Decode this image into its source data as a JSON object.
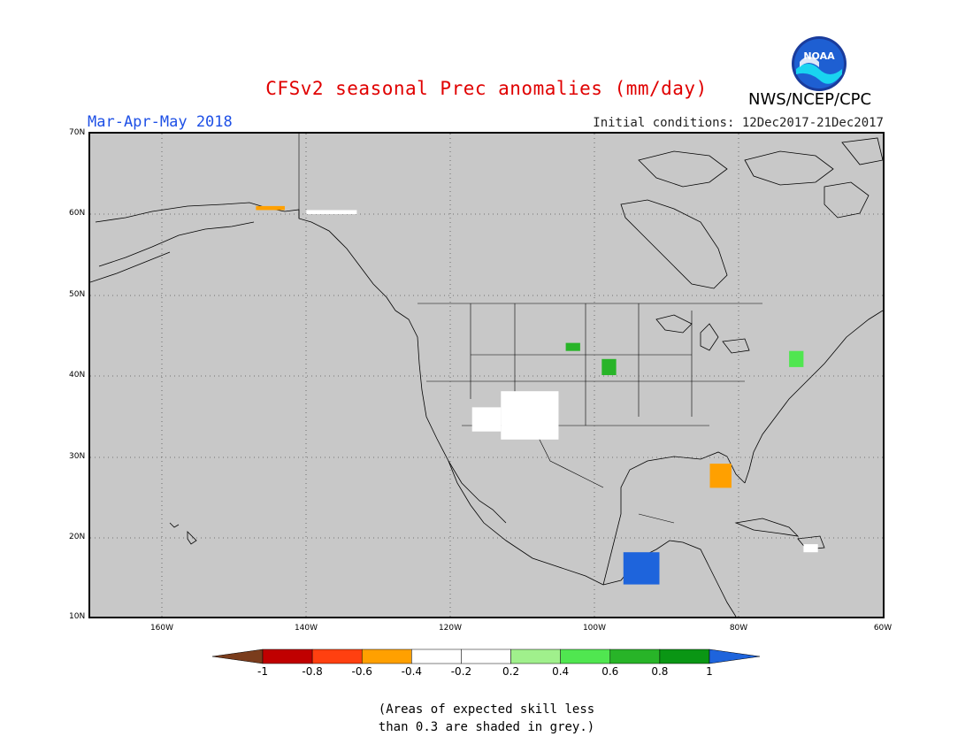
{
  "title": "CFSv2 seasonal Prec anomalies (mm/day)",
  "season": "Mar-Apr-May 2018",
  "initial_conditions": "Initial conditions: 12Dec2017-21Dec2017",
  "agency": "NWS/NCEP/CPC",
  "logo_text": "NOAA",
  "lat_labels": [
    "70N",
    "60N",
    "50N",
    "40N",
    "30N",
    "20N",
    "10N"
  ],
  "lon_labels": [
    "160W",
    "140W",
    "120W",
    "100W",
    "80W",
    "60W"
  ],
  "colorbar": {
    "ticks": [
      "-1",
      "-0.8",
      "-0.6",
      "-0.4",
      "-0.2",
      "0.2",
      "0.4",
      "0.6",
      "0.8",
      "1"
    ],
    "colors": [
      "#7a3c1c",
      "#c00000",
      "#ff4010",
      "#ffa000",
      "#ffffff",
      "#a0f08c",
      "#50e650",
      "#28b428",
      "#0a9614",
      "#1e64dc"
    ]
  },
  "footnote_line1": "(Areas of expected skill less",
  "footnote_line2": "than 0.3 are shaded in grey.)",
  "colors": {
    "background_grey": "#c8c8c8",
    "title_red": "#e00000",
    "season_blue": "#1e50e6"
  },
  "chart_data": {
    "type": "heatmap",
    "title": "CFSv2 seasonal Prec anomalies (mm/day)",
    "period": "Mar-Apr-May 2018",
    "xlim": [
      -170,
      -60
    ],
    "ylim": [
      10,
      70
    ],
    "grid": true,
    "units": "mm/day",
    "levels": [
      -1,
      -0.8,
      -0.6,
      -0.4,
      -0.2,
      0.2,
      0.4,
      0.6,
      0.8,
      1
    ],
    "anomaly_regions": [
      {
        "lon": [
          -113,
          -105
        ],
        "lat": [
          32,
          38
        ],
        "value": -0.3
      },
      {
        "lon": [
          -117,
          -113
        ],
        "lat": [
          33,
          36
        ],
        "value": -0.3
      },
      {
        "lon": [
          -84,
          -81
        ],
        "lat": [
          26,
          29
        ],
        "value": -0.5
      },
      {
        "lon": [
          -147,
          -143
        ],
        "lat": [
          60.5,
          61
        ],
        "value": -0.6
      },
      {
        "lon": [
          -140,
          -133
        ],
        "lat": [
          60,
          60.5
        ],
        "value": -0.4
      },
      {
        "lon": [
          -71,
          -69
        ],
        "lat": [
          18,
          19
        ],
        "value": -0.3
      },
      {
        "lon": [
          -99,
          -97
        ],
        "lat": [
          40,
          42
        ],
        "value": 0.5
      },
      {
        "lon": [
          -104,
          -102
        ],
        "lat": [
          43,
          44
        ],
        "value": 0.5
      },
      {
        "lon": [
          -96,
          -91
        ],
        "lat": [
          14,
          18
        ],
        "value": 1.0
      },
      {
        "lon": [
          -73,
          -71
        ],
        "lat": [
          41,
          43
        ],
        "value": 0.3
      }
    ]
  }
}
